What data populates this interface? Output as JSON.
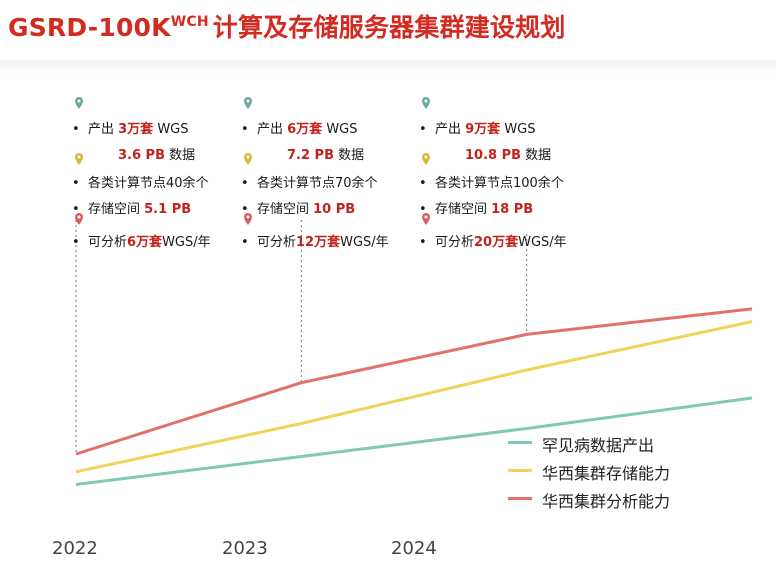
{
  "title": {
    "main": "GSRD-100K",
    "sup": "WCH",
    "rest": "计算及存储服务器集群建设规划"
  },
  "panels": [
    {
      "l1": {
        "pre": "产出 ",
        "hl": "3万套",
        "post": " WGS"
      },
      "l2": {
        "hl": "3.6 PB",
        "post": " 数据"
      },
      "l3": {
        "text": "各类计算节点40余个"
      },
      "l4": {
        "pre": "存储空间 ",
        "hl": "5.1 PB"
      },
      "l5": {
        "pre": "可分析",
        "hl": "6万套",
        "post": "WGS/年"
      }
    },
    {
      "l1": {
        "pre": "产出 ",
        "hl": "6万套",
        "post": " WGS"
      },
      "l2": {
        "hl": "7.2 PB",
        "post": " 数据"
      },
      "l3": {
        "text": "各类计算节点70余个"
      },
      "l4": {
        "pre": "存储空间 ",
        "hl": "10 PB"
      },
      "l5": {
        "pre": "可分析",
        "hl": "12万套",
        "post": "WGS/年"
      }
    },
    {
      "l1": {
        "pre": "产出 ",
        "hl": "9万套",
        "post": " WGS"
      },
      "l2": {
        "hl": "10.8 PB",
        "post": " 数据"
      },
      "l3": {
        "text": "各类计算节点100余个"
      },
      "l4": {
        "pre": "存储空间 ",
        "hl": "18 PB"
      },
      "l5": {
        "pre": "可分析",
        "hl": "20万套",
        "post": "WGS/年"
      }
    }
  ],
  "colors": {
    "title": "#d42b20",
    "highlight": "#c0231c",
    "pin_teal": "#6aa9a0",
    "pin_gold": "#d8b93a",
    "pin_red": "#d96060"
  },
  "chart_data": {
    "type": "line",
    "categories": [
      "2022",
      "2023",
      "2024"
    ],
    "x": [
      2022,
      2023,
      2024,
      2025
    ],
    "series": [
      {
        "name": "罕见病数据产出",
        "color": "#7fc9b6",
        "values": [
          1.0,
          2.1,
          3.2,
          4.4
        ]
      },
      {
        "name": "华西集群存储能力",
        "color": "#f2d35a",
        "values": [
          1.5,
          3.4,
          5.5,
          7.4
        ]
      },
      {
        "name": "华西集群分析能力",
        "color": "#e3716b",
        "values": [
          2.2,
          5.0,
          6.9,
          7.9
        ]
      }
    ],
    "xlim": [
      2021.8,
      2025.0
    ],
    "ylim": [
      0,
      11
    ],
    "grid": false,
    "legend": "bottom-right"
  }
}
